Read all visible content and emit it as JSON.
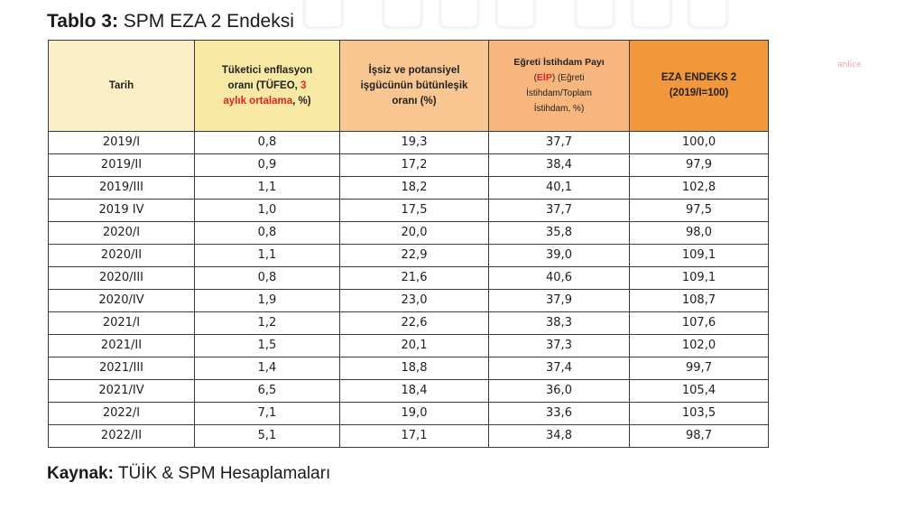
{
  "watermark": "anlice",
  "title": {
    "label": "Tablo 3:",
    "text": "SPM EZA 2 Endeksi"
  },
  "columns": {
    "tarih": "Tarih",
    "tufe": {
      "part1": "Tüketici enflasyon",
      "part2": "oranı (TÜFEO, ",
      "red1": "3",
      "red2": "aylık ortalama",
      "part3": ", %)"
    },
    "issiz": {
      "line1": "İşsiz ve potansiyel",
      "line2": "işgücünün bütünleşik",
      "line3": "oranı (%)"
    },
    "egreti": {
      "line1": "Eğreti İstihdam Payı",
      "open": "(",
      "red": "EİP",
      "close": ") (Eğreti",
      "line3": "İstihdam/Toplam",
      "line4": "İstihdam, %)"
    },
    "eza": {
      "line1": "EZA ENDEKS 2",
      "line2": "(2019/I=100)"
    }
  },
  "rows": [
    [
      "2019/I",
      "0,8",
      "19,3",
      "37,7",
      "100,0"
    ],
    [
      "2019/II",
      "0,9",
      "17,2",
      "38,4",
      "97,9"
    ],
    [
      "2019/III",
      "1,1",
      "18,2",
      "40,1",
      "102,8"
    ],
    [
      "2019 IV",
      "1,0",
      "17,5",
      "37,7",
      "97,5"
    ],
    [
      "2020/I",
      "0,8",
      "20,0",
      "35,8",
      "98,0"
    ],
    [
      "2020/II",
      "1,1",
      "22,9",
      "39,0",
      "109,1"
    ],
    [
      "2020/III",
      "0,8",
      "21,6",
      "40,6",
      "109,1"
    ],
    [
      "2020/IV",
      "1,9",
      "23,0",
      "37,9",
      "108,7"
    ],
    [
      "2021/I",
      "1,2",
      "22,6",
      "38,3",
      "107,6"
    ],
    [
      "2021/II",
      "1,5",
      "20,1",
      "37,3",
      "102,0"
    ],
    [
      "2021/III",
      "1,4",
      "18,8",
      "37,4",
      "99,7"
    ],
    [
      "2021/IV",
      "6,5",
      "18,4",
      "36,0",
      "105,4"
    ],
    [
      "2022/I",
      "7,1",
      "19,0",
      "33,6",
      "103,5"
    ],
    [
      "2022/II",
      "5,1",
      "17,1",
      "34,8",
      "98,7"
    ]
  ],
  "source": {
    "label": "Kaynak:",
    "text": "TÜİK & SPM Hesaplamaları"
  },
  "colors": {
    "header_date": "#fbefc7",
    "header_tufe": "#f7e8a3",
    "header_issiz": "#f9c692",
    "header_egreti": "#f8b67f",
    "header_eza": "#f3973c",
    "red_text": "#e02222"
  }
}
